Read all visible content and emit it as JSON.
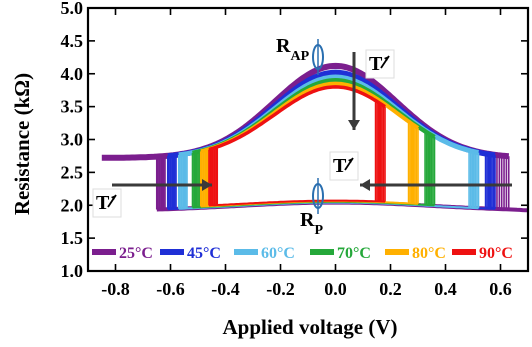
{
  "chart_data": {
    "type": "line",
    "title": "",
    "xlabel": "Applied voltage (V)",
    "ylabel": "Resistance (kΩ)",
    "xlim": [
      -0.9,
      0.7
    ],
    "ylim": [
      1.0,
      5.0
    ],
    "xticks": [
      -0.8,
      -0.6,
      -0.4,
      -0.2,
      0.0,
      0.2,
      0.4,
      0.6
    ],
    "yticks": [
      1.0,
      1.5,
      2.0,
      2.5,
      3.0,
      3.5,
      4.0,
      4.5,
      5.0
    ],
    "xtick_labels": [
      "-0.8",
      "-0.6",
      "-0.4",
      "-0.2",
      "0.0",
      "0.2",
      "0.4",
      "0.6"
    ],
    "ytick_labels": [
      "1.0",
      "1.5",
      "2.0",
      "2.5",
      "3.0",
      "3.5",
      "4.0",
      "4.5",
      "5.0"
    ],
    "grid": false,
    "legend_position": "bottom",
    "series": [
      {
        "name": "25°C",
        "color": "#7b1e8e",
        "r_ap_peak": 4.12,
        "r_p": 1.95,
        "switch_ap_to_p_v": -0.65,
        "switch_p_to_ap_v": 0.63
      },
      {
        "name": "45°C",
        "color": "#1f2fd6",
        "r_ap_peak": 4.02,
        "r_p": 1.95,
        "switch_ap_to_p_v": -0.61,
        "switch_p_to_ap_v": 0.58
      },
      {
        "name": "60°C",
        "color": "#5bbbe8",
        "r_ap_peak": 3.95,
        "r_p": 1.95,
        "switch_ap_to_p_v": -0.57,
        "switch_p_to_ap_v": 0.52
      },
      {
        "name": "70°C",
        "color": "#25a83a",
        "r_ap_peak": 3.9,
        "r_p": 1.96,
        "switch_ap_to_p_v": -0.52,
        "switch_p_to_ap_v": 0.36
      },
      {
        "name": "80°C",
        "color": "#ffb000",
        "r_ap_peak": 3.85,
        "r_p": 1.97,
        "switch_ap_to_p_v": -0.49,
        "switch_p_to_ap_v": 0.3
      },
      {
        "name": "90°C",
        "color": "#ee1111",
        "r_ap_peak": 3.8,
        "r_p": 1.98,
        "switch_ap_to_p_v": -0.46,
        "switch_p_to_ap_v": 0.18
      }
    ],
    "annotations": {
      "rap_label": "R",
      "rap_sub": "AP",
      "rp_label": "R",
      "rp_sub": "P",
      "t_label": "T"
    }
  }
}
